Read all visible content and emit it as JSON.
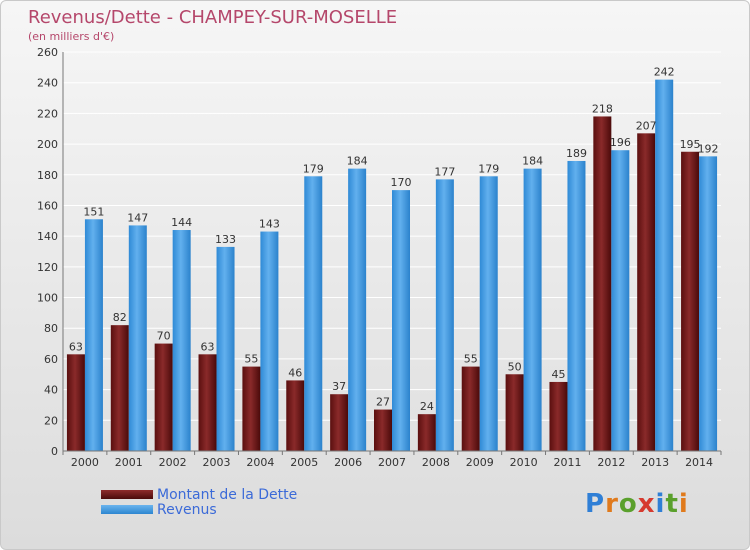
{
  "title": "Revenus/Dette - CHAMPEY-SUR-MOSELLE",
  "subtitle": "(en milliers d'€)",
  "legend": {
    "dette": "Montant de la Dette",
    "revenus": "Revenus"
  },
  "logo": {
    "letters": [
      "P",
      "r",
      "o",
      "x",
      "i",
      "t",
      "i"
    ],
    "colors": [
      "#2f7fd6",
      "#e07a1c",
      "#5aa02c",
      "#d63a2f",
      "#2f7fd6",
      "#5aa02c",
      "#e07a1c"
    ]
  },
  "colors": {
    "dette": "#6b1616",
    "revenus": "#3a96e0",
    "title": "#b5476b",
    "legend_text": "#3b6ad8"
  },
  "chart_data": {
    "type": "bar",
    "title": "Revenus/Dette - CHAMPEY-SUR-MOSELLE",
    "ylabel": "(en milliers d'€)",
    "categories": [
      "2000",
      "2001",
      "2002",
      "2003",
      "2004",
      "2005",
      "2006",
      "2007",
      "2008",
      "2009",
      "2010",
      "2011",
      "2012",
      "2013",
      "2014"
    ],
    "series": [
      {
        "name": "Montant de la Dette",
        "values": [
          63,
          82,
          70,
          63,
          55,
          46,
          37,
          27,
          24,
          55,
          50,
          45,
          218,
          207,
          195
        ]
      },
      {
        "name": "Revenus",
        "values": [
          151,
          147,
          144,
          133,
          143,
          179,
          184,
          170,
          177,
          179,
          184,
          189,
          196,
          242,
          192
        ]
      }
    ],
    "ylim": [
      0,
      260
    ],
    "yticks": [
      0,
      20,
      40,
      60,
      80,
      100,
      120,
      140,
      160,
      180,
      200,
      220,
      240,
      260
    ],
    "grid": true,
    "legend_position": "bottom-left"
  }
}
